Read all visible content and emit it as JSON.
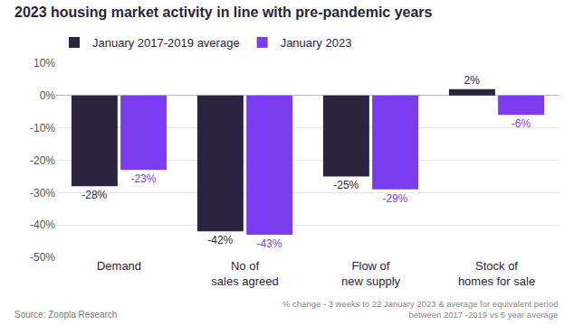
{
  "chart_data": {
    "type": "bar",
    "title": "2023 housing market activity in line with pre-pandemic years",
    "categories": [
      "Demand",
      "No of\nsales agreed",
      "Flow of\nnew supply",
      "Stock of\nhomes for sale"
    ],
    "series": [
      {
        "name": "January 2017-2019 average",
        "color": "#2b2440",
        "values": [
          -28,
          -42,
          -25,
          2
        ],
        "value_labels": [
          "-28%",
          "-42%",
          "-25%",
          "2%"
        ]
      },
      {
        "name": "January 2023",
        "color": "#7b3cf0",
        "values": [
          -23,
          -43,
          -29,
          -6
        ],
        "value_labels": [
          "-23%",
          "-43%",
          "-29%",
          "-6%"
        ]
      }
    ],
    "ylim": [
      -50,
      10
    ],
    "yticks": [
      {
        "value": 10,
        "label": "10%"
      },
      {
        "value": 0,
        "label": "0%"
      },
      {
        "value": -10,
        "label": "-10%"
      },
      {
        "value": -20,
        "label": "-20%"
      },
      {
        "value": -30,
        "label": "-30%"
      },
      {
        "value": -40,
        "label": "-40%"
      },
      {
        "value": -50,
        "label": "-50%"
      }
    ],
    "grid": true,
    "legend": "top-left",
    "data_labels": true,
    "source": "Source: Zoopla Research",
    "note": "% change - 3 weeks to 22 January 2023 & average for equivalent period\nbetween 2017 -2019 vs 5 year average"
  }
}
